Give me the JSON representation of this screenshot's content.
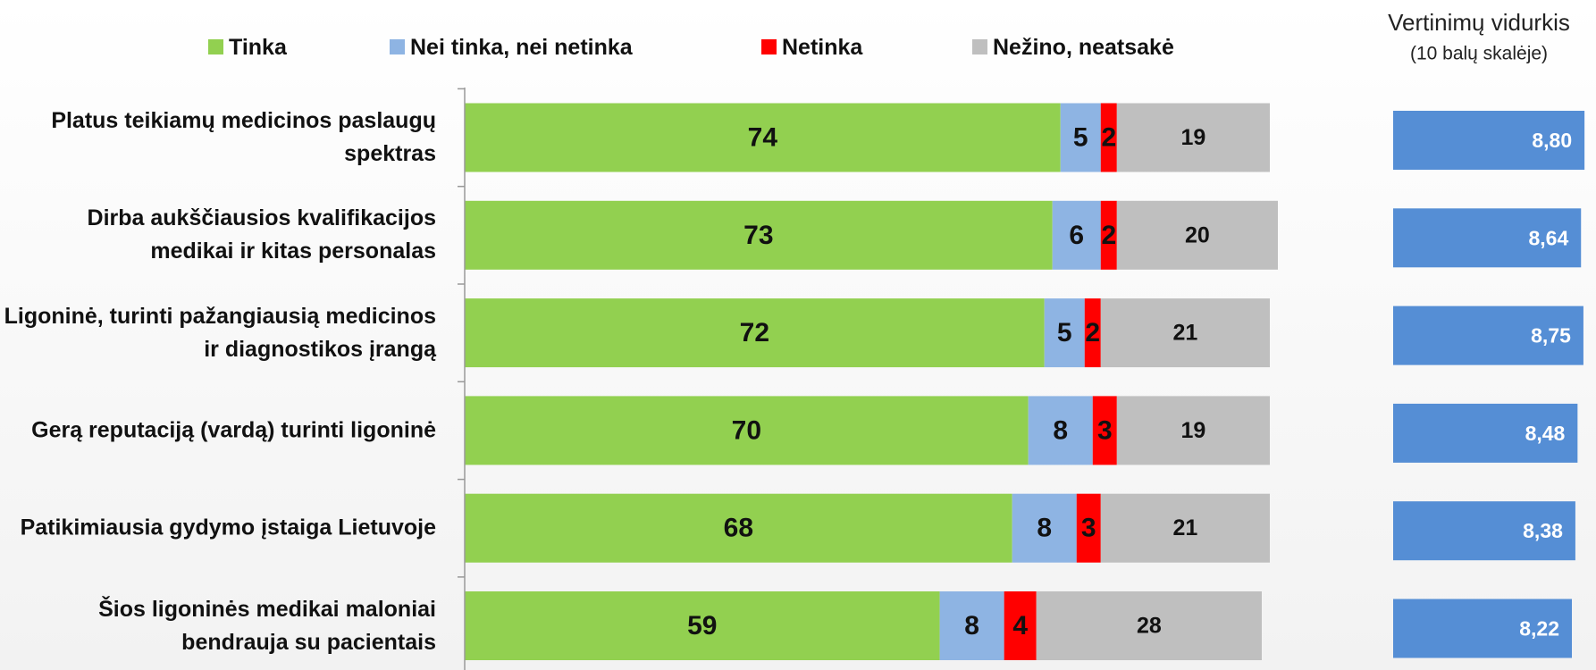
{
  "chart_data": [
    {
      "type": "stacked-bar-horizontal",
      "categories": [
        "Platus teikiamų medicinos paslaugų spektras",
        "Dirba aukščiausios kvalifikacijos medikai ir kitas personalas",
        "Ligoninė, turinti pažangiausią medicinos ir diagnostikos įrangą",
        "Gerą reputaciją (vardą) turinti ligoninė",
        "Patikimiausia gydymo įstaiga Lietuvoje",
        "Šios ligoninės medikai maloniai bendrauja su pacientais"
      ],
      "series": [
        {
          "name": "Tinka",
          "color": "#92d050",
          "values": [
            74,
            73,
            72,
            70,
            68,
            59
          ]
        },
        {
          "name": "Nei tinka, nei netinka",
          "color": "#8eb4e3",
          "values": [
            5,
            6,
            5,
            8,
            8,
            8
          ]
        },
        {
          "name": "Netinka",
          "color": "#ff0000",
          "values": [
            2,
            2,
            2,
            3,
            3,
            4
          ]
        },
        {
          "name": "Nežino, neatsakė",
          "color": "#bfbfbf",
          "values": [
            19,
            20,
            21,
            19,
            21,
            28
          ]
        }
      ],
      "xlim": [
        0,
        100
      ],
      "legend": "top"
    },
    {
      "type": "bar-horizontal",
      "title": "Vertinimų vidurkis",
      "subtitle": "(10 balų skalėje)",
      "values": [
        8.8,
        8.64,
        8.75,
        8.48,
        8.38,
        8.22
      ],
      "value_labels": [
        "8,80",
        "8,64",
        "8,75",
        "8,48",
        "8,38",
        "8,22"
      ],
      "color": "#558ed5",
      "xlim": [
        0,
        9
      ]
    }
  ]
}
